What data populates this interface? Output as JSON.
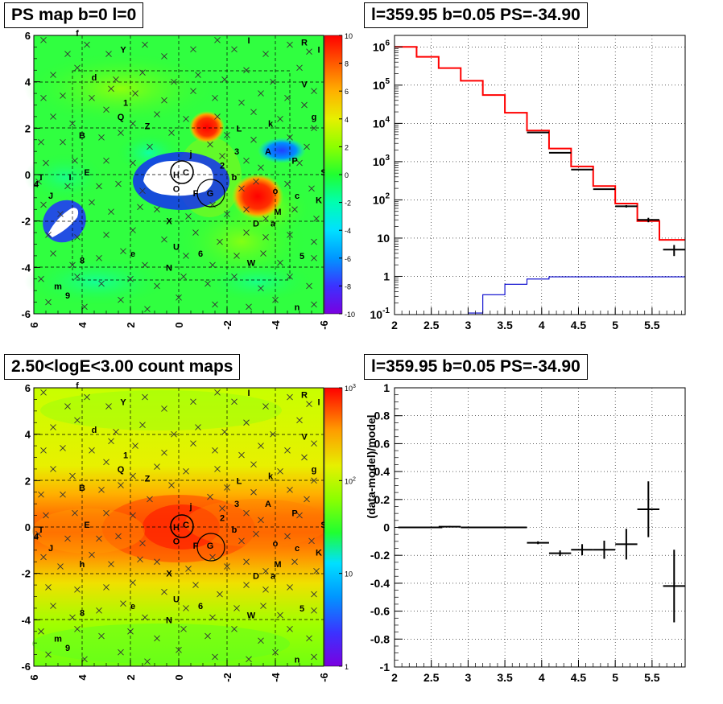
{
  "panels": {
    "ps_map": {
      "title": "PS map b=0 l=0",
      "x_ticks": [
        "6",
        "4",
        "2",
        "0",
        "-2",
        "-4",
        "-6"
      ],
      "y_ticks": [
        "6",
        "4",
        "2",
        "0",
        "-2",
        "-4",
        "-6"
      ],
      "colorbar_ticks": [
        "10",
        "8",
        "6",
        "4",
        "2",
        "0",
        "-2",
        "-4",
        "-6",
        "-8",
        "-10"
      ],
      "colors": [
        "#7a00e0",
        "#3b32ff",
        "#0096ff",
        "#00e0ff",
        "#00ffb0",
        "#20ff30",
        "#8cff00",
        "#e6f000",
        "#ff9a00",
        "#ff4a00",
        "#ff0000"
      ]
    },
    "spectrum": {
      "title": "l=359.95 b=0.05 PS=-34.90",
      "x_ticks": [
        "2",
        "2.5",
        "3",
        "3.5",
        "4",
        "4.5",
        "5",
        "5.5"
      ],
      "y_ticks": [
        "10^-1",
        "1",
        "10",
        "10^2",
        "10^3",
        "10^4",
        "10^5",
        "10^6"
      ]
    },
    "count_map": {
      "title": "2.50<logE<3.00 count maps",
      "x_ticks": [
        "6",
        "4",
        "2",
        "0",
        "-2",
        "-4",
        "-6"
      ],
      "y_ticks": [
        "6",
        "4",
        "2",
        "0",
        "-2",
        "-4",
        "-6"
      ],
      "colorbar_ticks": [
        "10^3",
        "10^2",
        "10",
        "1"
      ]
    },
    "residual": {
      "title": "l=359.95 b=0.05 PS=-34.90",
      "ylabel": "(data-model)/model",
      "x_ticks": [
        "2",
        "2.5",
        "3",
        "3.5",
        "4",
        "4.5",
        "5",
        "5.5"
      ],
      "y_ticks": [
        "1",
        "0.8",
        "0.6",
        "0.4",
        "0.2",
        "0",
        "-0.2",
        "-0.4",
        "-0.6",
        "-0.8",
        "-1"
      ]
    }
  },
  "source_labels": [
    {
      "t": "f",
      "l": 4.2,
      "b": 6.1
    },
    {
      "t": "Y",
      "l": 2.3,
      "b": 5.4
    },
    {
      "t": "I",
      "l": -2.9,
      "b": 5.8
    },
    {
      "t": "R",
      "l": -5.2,
      "b": 5.7
    },
    {
      "t": "I",
      "l": -5.8,
      "b": 5.4
    },
    {
      "t": "d",
      "l": 3.5,
      "b": 4.2
    },
    {
      "t": "V",
      "l": -5.2,
      "b": 3.9
    },
    {
      "t": "1",
      "l": 2.2,
      "b": 3.1
    },
    {
      "t": "g",
      "l": -5.6,
      "b": 2.5
    },
    {
      "t": "Q",
      "l": 2.4,
      "b": 2.5
    },
    {
      "t": "Z",
      "l": 1.3,
      "b": 2.1
    },
    {
      "t": "L",
      "l": -2.5,
      "b": 2.0
    },
    {
      "t": "k",
      "l": -3.8,
      "b": 2.2
    },
    {
      "t": "B",
      "l": 4.0,
      "b": 1.7
    },
    {
      "t": "3",
      "l": -2.4,
      "b": 1.0
    },
    {
      "t": "A",
      "l": -3.7,
      "b": 1.0
    },
    {
      "t": "P",
      "l": -4.8,
      "b": 0.6
    },
    {
      "t": "2",
      "l": -1.8,
      "b": 0.4
    },
    {
      "t": "S",
      "l": -6.0,
      "b": 0.1
    },
    {
      "t": "T",
      "l": 5.7,
      "b": -0.1
    },
    {
      "t": "I",
      "l": 4.5,
      "b": -0.1
    },
    {
      "t": "E",
      "l": 3.8,
      "b": 0.1
    },
    {
      "t": "b",
      "l": -2.3,
      "b": -0.1
    },
    {
      "t": "4",
      "l": 5.9,
      "b": -0.4
    },
    {
      "t": "J",
      "l": 5.3,
      "b": -0.9
    },
    {
      "t": "o",
      "l": -4.0,
      "b": -0.7
    },
    {
      "t": "c",
      "l": -4.9,
      "b": -0.9
    },
    {
      "t": "K",
      "l": -5.8,
      "b": -1.1
    },
    {
      "t": "M",
      "l": -4.1,
      "b": -1.6
    },
    {
      "t": "D",
      "l": -3.2,
      "b": -2.1
    },
    {
      "t": "a",
      "l": -3.9,
      "b": -2.1
    },
    {
      "t": "X",
      "l": 0.4,
      "b": -2.0
    },
    {
      "t": "U",
      "l": 0.1,
      "b": -3.1
    },
    {
      "t": "e",
      "l": 1.9,
      "b": -3.4
    },
    {
      "t": "6",
      "l": -0.9,
      "b": -3.4
    },
    {
      "t": "5",
      "l": -5.1,
      "b": -3.5
    },
    {
      "t": "8",
      "l": 4.0,
      "b": -3.7
    },
    {
      "t": "W",
      "l": -3.0,
      "b": -3.8
    },
    {
      "t": "N",
      "l": 0.4,
      "b": -4.0
    },
    {
      "t": "m",
      "l": 5.0,
      "b": -4.8
    },
    {
      "t": "9",
      "l": 4.6,
      "b": -5.2
    },
    {
      "t": "n",
      "l": -4.9,
      "b": -5.7
    },
    {
      "t": "H",
      "l": 0.1,
      "b": 0.0
    },
    {
      "t": "C",
      "l": -0.3,
      "b": 0.1
    },
    {
      "t": "O",
      "l": 0.1,
      "b": -0.6
    },
    {
      "t": "F",
      "l": -0.7,
      "b": -0.8
    },
    {
      "t": "G",
      "l": -1.3,
      "b": -0.8
    },
    {
      "t": "j",
      "l": -0.5,
      "b": 0.9
    }
  ],
  "count_map_extra_label": {
    "t": "h",
    "l": 4.0,
    "b": -1.6
  },
  "chart_data": [
    {
      "type": "heatmap",
      "title": "PS map b=0 l=0",
      "x_range": [
        6,
        -6
      ],
      "y_range": [
        -6,
        6
      ],
      "z_range": [
        -10,
        10
      ],
      "features": [
        {
          "kind": "saturated-low",
          "l": 0.4,
          "b": 0.3,
          "note": "white/blue hole near GC"
        },
        {
          "kind": "saturated-low",
          "l": 4.4,
          "b": -1.9
        },
        {
          "kind": "high",
          "l": -3.3,
          "b": -0.9
        },
        {
          "kind": "high",
          "l": -1.0,
          "b": 1.9
        },
        {
          "kind": "low",
          "l": -4.3,
          "b": 1.0
        }
      ]
    },
    {
      "type": "line",
      "title": "l=359.95 b=0.05 PS=-34.90",
      "ylog": true,
      "xlim": [
        2,
        5.95
      ],
      "ylim": [
        0.1,
        2000000
      ],
      "series": [
        {
          "style": "histogram",
          "color": "#ff0000",
          "edges": [
            2.0,
            2.3,
            2.6,
            2.9,
            3.2,
            3.5,
            3.8,
            4.1,
            4.4,
            4.7,
            5.0,
            5.3,
            5.6,
            5.95
          ],
          "values": [
            1000000,
            550000,
            280000,
            130000,
            55000,
            19000,
            6500,
            2200,
            750,
            230,
            80,
            28,
            9
          ]
        },
        {
          "style": "histogram",
          "color": "#0000cc",
          "edges": [
            3.0,
            3.2,
            3.5,
            3.8,
            4.1,
            5.95
          ],
          "values": [
            0.11,
            0.33,
            0.62,
            0.85,
            0.97
          ]
        },
        {
          "style": "errorbars",
          "color": "#000000",
          "points": [
            {
              "x": 3.95,
              "xerr": 0.15,
              "y": 5800,
              "yerr": 0
            },
            {
              "x": 4.25,
              "xerr": 0.15,
              "y": 1700,
              "yerr": 0
            },
            {
              "x": 4.55,
              "xerr": 0.15,
              "y": 620,
              "yerr": 0
            },
            {
              "x": 4.85,
              "xerr": 0.15,
              "y": 190,
              "yerr": 0
            },
            {
              "x": 5.15,
              "xerr": 0.15,
              "y": 68,
              "yerr": 5
            },
            {
              "x": 5.45,
              "xerr": 0.15,
              "y": 30,
              "yerr": 4
            },
            {
              "x": 5.8,
              "xerr": 0.15,
              "y": 5,
              "yerr": 1.6
            }
          ]
        }
      ]
    },
    {
      "type": "heatmap",
      "title": "2.50<logE<3.00 count maps",
      "x_range": [
        6,
        -6
      ],
      "y_range": [
        -6,
        6
      ],
      "z_range": [
        1,
        1000
      ],
      "zlog": true,
      "features": [
        {
          "kind": "galactic-plane-ridge",
          "b": 0
        }
      ]
    },
    {
      "type": "scatter",
      "title": "l=359.95 b=0.05 PS=-34.90",
      "ylabel": "(data-model)/model",
      "xlim": [
        2,
        5.95
      ],
      "ylim": [
        -1,
        1
      ],
      "points": [
        {
          "x": 2.35,
          "xerr": 0.3,
          "y": 0.0,
          "yerr": 0.005
        },
        {
          "x": 2.75,
          "xerr": 0.15,
          "y": 0.005,
          "yerr": 0.005
        },
        {
          "x": 3.35,
          "xerr": 0.45,
          "y": 0.0,
          "yerr": 0.005
        },
        {
          "x": 3.95,
          "xerr": 0.15,
          "y": -0.11,
          "yerr": 0.01
        },
        {
          "x": 4.25,
          "xerr": 0.15,
          "y": -0.185,
          "yerr": 0.02
        },
        {
          "x": 4.55,
          "xerr": 0.15,
          "y": -0.16,
          "yerr": 0.04
        },
        {
          "x": 4.85,
          "xerr": 0.15,
          "y": -0.16,
          "yerr": 0.065
        },
        {
          "x": 5.15,
          "xerr": 0.15,
          "y": -0.12,
          "yerr": 0.11
        },
        {
          "x": 5.45,
          "xerr": 0.15,
          "y": 0.13,
          "yerr": 0.2
        },
        {
          "x": 5.8,
          "xerr": 0.15,
          "y": -0.42,
          "yerr": 0.26
        }
      ]
    }
  ]
}
